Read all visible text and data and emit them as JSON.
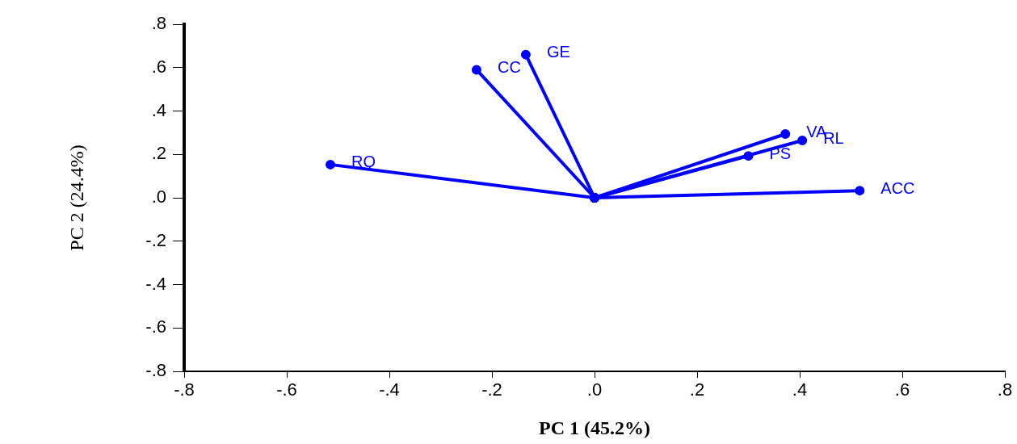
{
  "chart_data": {
    "type": "line",
    "xlabel": "PC 1 (45.2%)",
    "ylabel": "PC 2 (24.4%)",
    "xlim": [
      -0.8,
      0.8
    ],
    "ylim": [
      -0.8,
      0.8
    ],
    "xticks": [
      {
        "value": -0.8,
        "label": "-.8"
      },
      {
        "value": -0.6,
        "label": "-.6"
      },
      {
        "value": -0.4,
        "label": "-.4"
      },
      {
        "value": -0.2,
        "label": "-.2"
      },
      {
        "value": 0,
        "label": ".0"
      },
      {
        "value": 0.2,
        "label": ".2"
      },
      {
        "value": 0.4,
        "label": ".4"
      },
      {
        "value": 0.6,
        "label": ".6"
      },
      {
        "value": 0.8,
        "label": ".8"
      }
    ],
    "yticks": [
      {
        "value": -0.8,
        "label": "-.8"
      },
      {
        "value": -0.6,
        "label": "-.6"
      },
      {
        "value": -0.4,
        "label": "-.4"
      },
      {
        "value": -0.2,
        "label": "-.2"
      },
      {
        "value": 0,
        "label": ".0"
      },
      {
        "value": 0.2,
        "label": ".2"
      },
      {
        "value": 0.4,
        "label": ".4"
      },
      {
        "value": 0.6,
        "label": ".6"
      },
      {
        "value": 0.8,
        "label": ".8"
      }
    ],
    "grid": false,
    "legend": false,
    "marker": "circle",
    "line_style": "solid",
    "series": [
      {
        "name": "RQ",
        "color": "#0000ff",
        "x": [
          0,
          -0.515
        ],
        "values": [
          0,
          0.153
        ]
      },
      {
        "name": "CC",
        "color": "#0000ff",
        "x": [
          0,
          -0.23
        ],
        "values": [
          0,
          0.59
        ]
      },
      {
        "name": "GE",
        "color": "#0000ff",
        "x": [
          0,
          -0.134
        ],
        "values": [
          0,
          0.66
        ]
      },
      {
        "name": "VA",
        "color": "#0000ff",
        "x": [
          0,
          0.372
        ],
        "values": [
          0,
          0.294
        ]
      },
      {
        "name": "RL",
        "color": "#0000ff",
        "x": [
          0,
          0.405
        ],
        "values": [
          0,
          0.264
        ]
      },
      {
        "name": "PS",
        "color": "#0000ff",
        "x": [
          0,
          0.3
        ],
        "values": [
          0,
          0.193
        ]
      },
      {
        "name": "ACC",
        "color": "#0000ff",
        "x": [
          0,
          0.517
        ],
        "values": [
          0,
          0.033
        ]
      }
    ]
  }
}
